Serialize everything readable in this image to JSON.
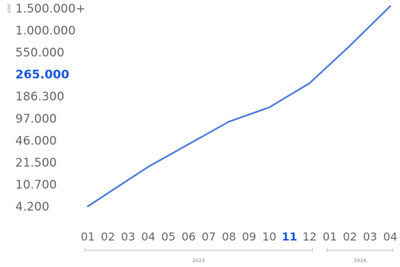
{
  "chart_data": {
    "type": "line",
    "ylabel": "adet",
    "y_scale": "categorical-log",
    "y_ticks": [
      "4.200",
      "10.700",
      "21.500",
      "46.000",
      "97.000",
      "186.300",
      "265.000",
      "550.000",
      "1.000.000",
      "1.500.000+"
    ],
    "y_highlight": "265.000",
    "x_labels": [
      "01",
      "02",
      "03",
      "04",
      "05",
      "06",
      "07",
      "08",
      "09",
      "10",
      "11",
      "12",
      "01",
      "02",
      "03",
      "04"
    ],
    "x_highlight_index": 10,
    "year_groups": [
      {
        "label": "2023",
        "start_index": 0,
        "end_index": 11
      },
      {
        "label": "2024",
        "start_index": 12,
        "end_index": 15
      }
    ],
    "series": [
      {
        "points": [
          {
            "x": "2023-01",
            "y_tick_position": 0.0
          },
          {
            "x": "2023-04",
            "y_tick_position": 1.8
          },
          {
            "x": "2023-08",
            "y_tick_position": 3.85
          },
          {
            "x": "2023-10",
            "y_tick_position": 4.5
          },
          {
            "x": "2023-12",
            "y_tick_position": 5.6
          },
          {
            "x": "2024-02",
            "y_tick_position": 7.3
          },
          {
            "x": "2024-04",
            "y_tick_position": 9.1
          }
        ]
      }
    ],
    "color": "#4a78d9",
    "highlight_color": "#1a56db",
    "grid": false,
    "legend": "none"
  }
}
